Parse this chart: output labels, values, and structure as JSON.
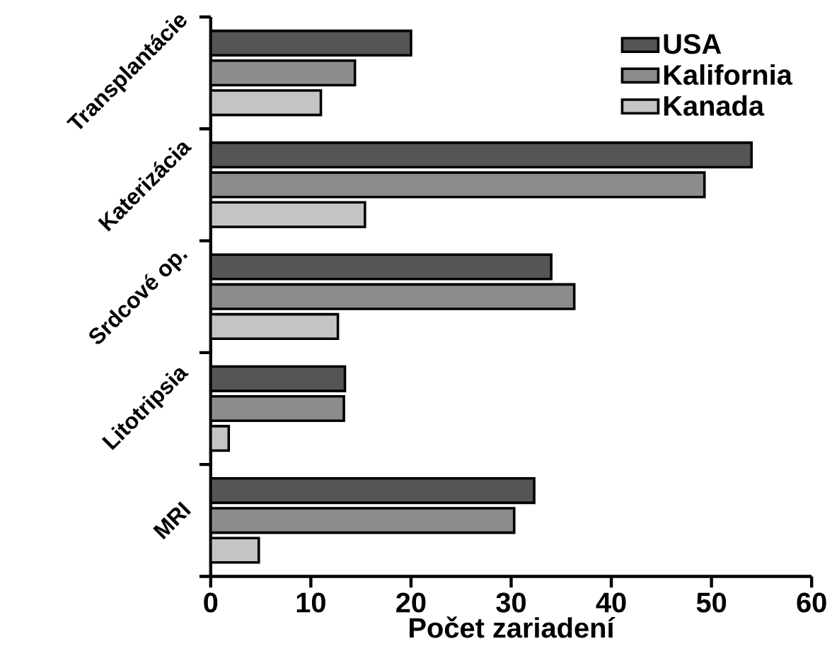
{
  "chart_data": {
    "type": "bar",
    "orientation": "horizontal",
    "xlabel": "Počet zariadení",
    "categories": [
      "Transplantácie",
      "Katerizácia",
      "Srdcové op.",
      "Litotripsia",
      "MRI"
    ],
    "series": [
      {
        "name": "USA",
        "color": "#555555",
        "values": [
          20,
          54,
          34,
          13.4,
          32.3
        ]
      },
      {
        "name": "Kalifornia",
        "color": "#8c8c8c",
        "values": [
          14.4,
          49.3,
          36.3,
          13.3,
          30.3
        ]
      },
      {
        "name": "Kanada",
        "color": "#c4c4c4",
        "values": [
          11,
          15.4,
          12.7,
          1.8,
          4.8
        ]
      }
    ],
    "xlim": [
      0,
      60
    ],
    "xticks": [
      0,
      10,
      20,
      30,
      40,
      50,
      60
    ],
    "legend": "top right"
  }
}
